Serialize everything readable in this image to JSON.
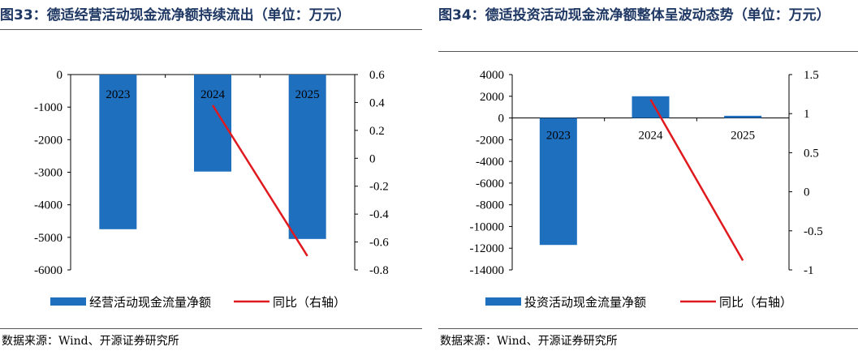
{
  "left": {
    "title": "图33：德适经营活动现金流净额持续流出（单位：万元）",
    "source": "数据来源：Wind、开源证券研究所"
  },
  "right": {
    "title": "图34：德适投资活动现金流净额整体呈波动态势（单位：万元）",
    "source": "数据来源：Wind、开源证券研究所"
  },
  "chart_data": [
    {
      "type": "bar",
      "categories": [
        "2023",
        "2024",
        "2025"
      ],
      "series": [
        {
          "name": "经营活动现金流量净额",
          "type": "bar",
          "axis": "left",
          "color": "#1f6fbf",
          "values": [
            -4750,
            -2980,
            -5050
          ]
        },
        {
          "name": "同比（右轴）",
          "type": "line",
          "axis": "right",
          "color": "#e0191f",
          "values": [
            null,
            0.38,
            -0.7
          ]
        }
      ],
      "y_left": {
        "ylim": [
          -6000,
          0
        ],
        "ticks": [
          "0",
          "-1000",
          "-2000",
          "-3000",
          "-4000",
          "-5000",
          "-6000"
        ]
      },
      "y_right": {
        "ylim": [
          -0.8,
          0.6
        ],
        "ticks": [
          "0.6",
          "0.4",
          "0.2",
          "0",
          "-0.2",
          "-0.4",
          "-0.6",
          "-0.8"
        ]
      },
      "legend_position": "bottom"
    },
    {
      "type": "bar",
      "categories": [
        "2023",
        "2024",
        "2025"
      ],
      "series": [
        {
          "name": "投资活动现金流量净额",
          "type": "bar",
          "axis": "left",
          "color": "#1f6fbf",
          "values": [
            -11700,
            2000,
            200
          ]
        },
        {
          "name": "同比（右轴）",
          "type": "line",
          "axis": "right",
          "color": "#e0191f",
          "values": [
            null,
            1.18,
            -0.88
          ]
        }
      ],
      "y_left": {
        "ylim": [
          -14000,
          4000
        ],
        "ticks": [
          "4000",
          "2000",
          "0",
          "-2000",
          "-4000",
          "-6000",
          "-8000",
          "-10000",
          "-12000",
          "-14000"
        ]
      },
      "y_right": {
        "ylim": [
          -1,
          1.5
        ],
        "ticks": [
          "1.5",
          "1",
          "0.5",
          "0",
          "-0.5",
          "-1"
        ]
      },
      "legend_position": "bottom"
    }
  ]
}
